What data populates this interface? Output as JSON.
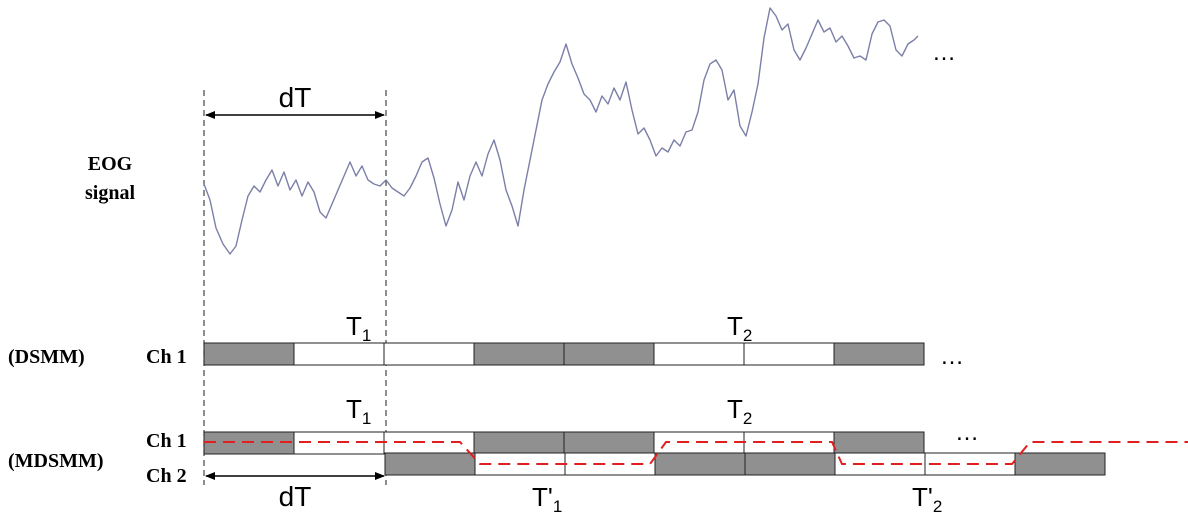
{
  "labels": {
    "eog_line1": "EOG",
    "eog_line2": "signal",
    "dsmm": "(DSMM)",
    "mdsmm": "(MDSMM)",
    "ch1_dsmm": "Ch 1",
    "ch1_mdsmm": "Ch 1",
    "ch2_mdsmm": "Ch 2",
    "dT_top": "dT",
    "dT_bottom": "dT",
    "t1_dsmm": "T",
    "t1_dsmm_sub": "1",
    "t2_dsmm": "T",
    "t2_dsmm_sub": "2",
    "t1_mdsmm": "T",
    "t1_mdsmm_sub": "1",
    "t2_mdsmm": "T",
    "t2_mdsmm_sub": "2",
    "tp1": "T'",
    "tp1_sub": "1",
    "tp2": "T'",
    "tp2_sub": "2",
    "ellipsis_signal": "…",
    "ellipsis_dsmm": "…",
    "ellipsis_mdsmm": "…"
  },
  "colors": {
    "signal": "#7b7fa8",
    "filled_block": "#909090",
    "empty_block": "#ffffff",
    "block_border": "#222222",
    "dashed_path": "#e02020",
    "guide": "#444444"
  },
  "sequences": {
    "dsmm_ch1": [
      "filled",
      "empty",
      "empty",
      "filled",
      "filled",
      "empty",
      "empty",
      "filled"
    ],
    "mdsmm_ch1": [
      "filled",
      "empty",
      "empty",
      "filled",
      "filled",
      "empty",
      "empty",
      "filled"
    ],
    "mdsmm_ch2": [
      "filled",
      "empty",
      "empty",
      "filled",
      "filled",
      "empty",
      "empty",
      "filled"
    ]
  }
}
